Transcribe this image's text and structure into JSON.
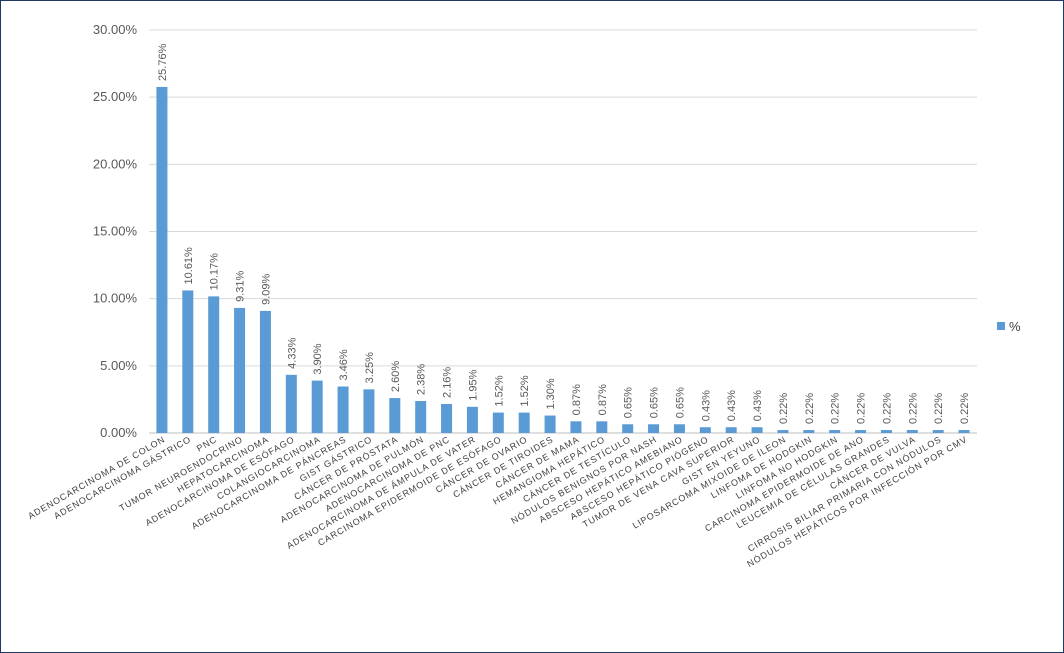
{
  "chart_data": {
    "type": "bar",
    "title": "",
    "xlabel": "",
    "ylabel": "",
    "ylim": [
      0,
      30
    ],
    "y_tick_step": 5,
    "y_tick_labels": [
      "0.00%",
      "5.00%",
      "10.00%",
      "15.00%",
      "20.00%",
      "25.00%",
      "30.00%"
    ],
    "grid": true,
    "legend_position": "right",
    "color": "#5b9bd5",
    "categories": [
      "ADENOCARCINOMA DE COLON",
      "ADENOCARCINOMA GÁSTRICO",
      "PNC",
      "TUMOR NEUROENDOCRINO",
      "HEPATOCARCINOMA",
      "ADENOCARCINOMA DE ESÓFAGO",
      "COLANGIOCARCINOMA",
      "ADENOCARCINOMA DE PÁNCREAS",
      "GIST GÁSTRICO",
      "CÁNCER DE PRÓSTATA",
      "ADENOCARCINOMA DE PULMÓN",
      "ADENOCARCINOMA DE PNC",
      "ADENOCARCINOMA DE ÁMPULA DE VATER",
      "CARCINOMA EPIDERMOIDE DE ESÓFAGO",
      "CÁNCER DE OVARIO",
      "CÁNCER DE TIROIDES",
      "CÁNCER DE MAMA",
      "HEMANGIOMA HEPÁTICO",
      "CÁNCER DE TESTÍCULO",
      "NÓDULOS BENIGNOS POR NASH",
      "ABSCESO HEPÁTICO AMEBIANO",
      "ABSCESO HEPÁTICO PIÓGENO",
      "TUMOR DE VENA CAVA SUPERIOR",
      "GIST EN YEYUNO",
      "LIPOSARCOMA MIXOIDE DE ÍLEON",
      "LINFOMA DE HODGKIN",
      "LINFOMA NO HODGKIN",
      "CARCINOMA EPIDERMOIDE DE ANO",
      "LEUCEMIA DE CÉLULAS GRANDES",
      "CÁNCER DE VULVA",
      "CIRROSIS BILIAR PRIMARIA CON NÓDULOS",
      "NÓDULOS HEPÁTICOS POR INFECCIÓN POR CMV"
    ],
    "series": [
      {
        "name": "%",
        "values": [
          25.76,
          10.61,
          10.17,
          9.31,
          9.09,
          4.33,
          3.9,
          3.46,
          3.25,
          2.6,
          2.38,
          2.16,
          1.95,
          1.52,
          1.52,
          1.3,
          0.87,
          0.87,
          0.65,
          0.65,
          0.65,
          0.43,
          0.43,
          0.43,
          0.22,
          0.22,
          0.22,
          0.22,
          0.22,
          0.22,
          0.22,
          0.22
        ],
        "labels": [
          "25.76%",
          "10.61%",
          "10.17%",
          "9.31%",
          "9.09%",
          "4.33%",
          "3.90%",
          "3.46%",
          "3.25%",
          "2.60%",
          "2.38%",
          "2.16%",
          "1.95%",
          "1.52%",
          "1.52%",
          "1.30%",
          "0.87%",
          "0.87%",
          "0.65%",
          "0.65%",
          "0.65%",
          "0.43%",
          "0.43%",
          "0.43%",
          "0.22%",
          "0.22%",
          "0.22%",
          "0.22%",
          "0.22%",
          "0.22%",
          "0.22%",
          "0.22%"
        ]
      }
    ]
  }
}
